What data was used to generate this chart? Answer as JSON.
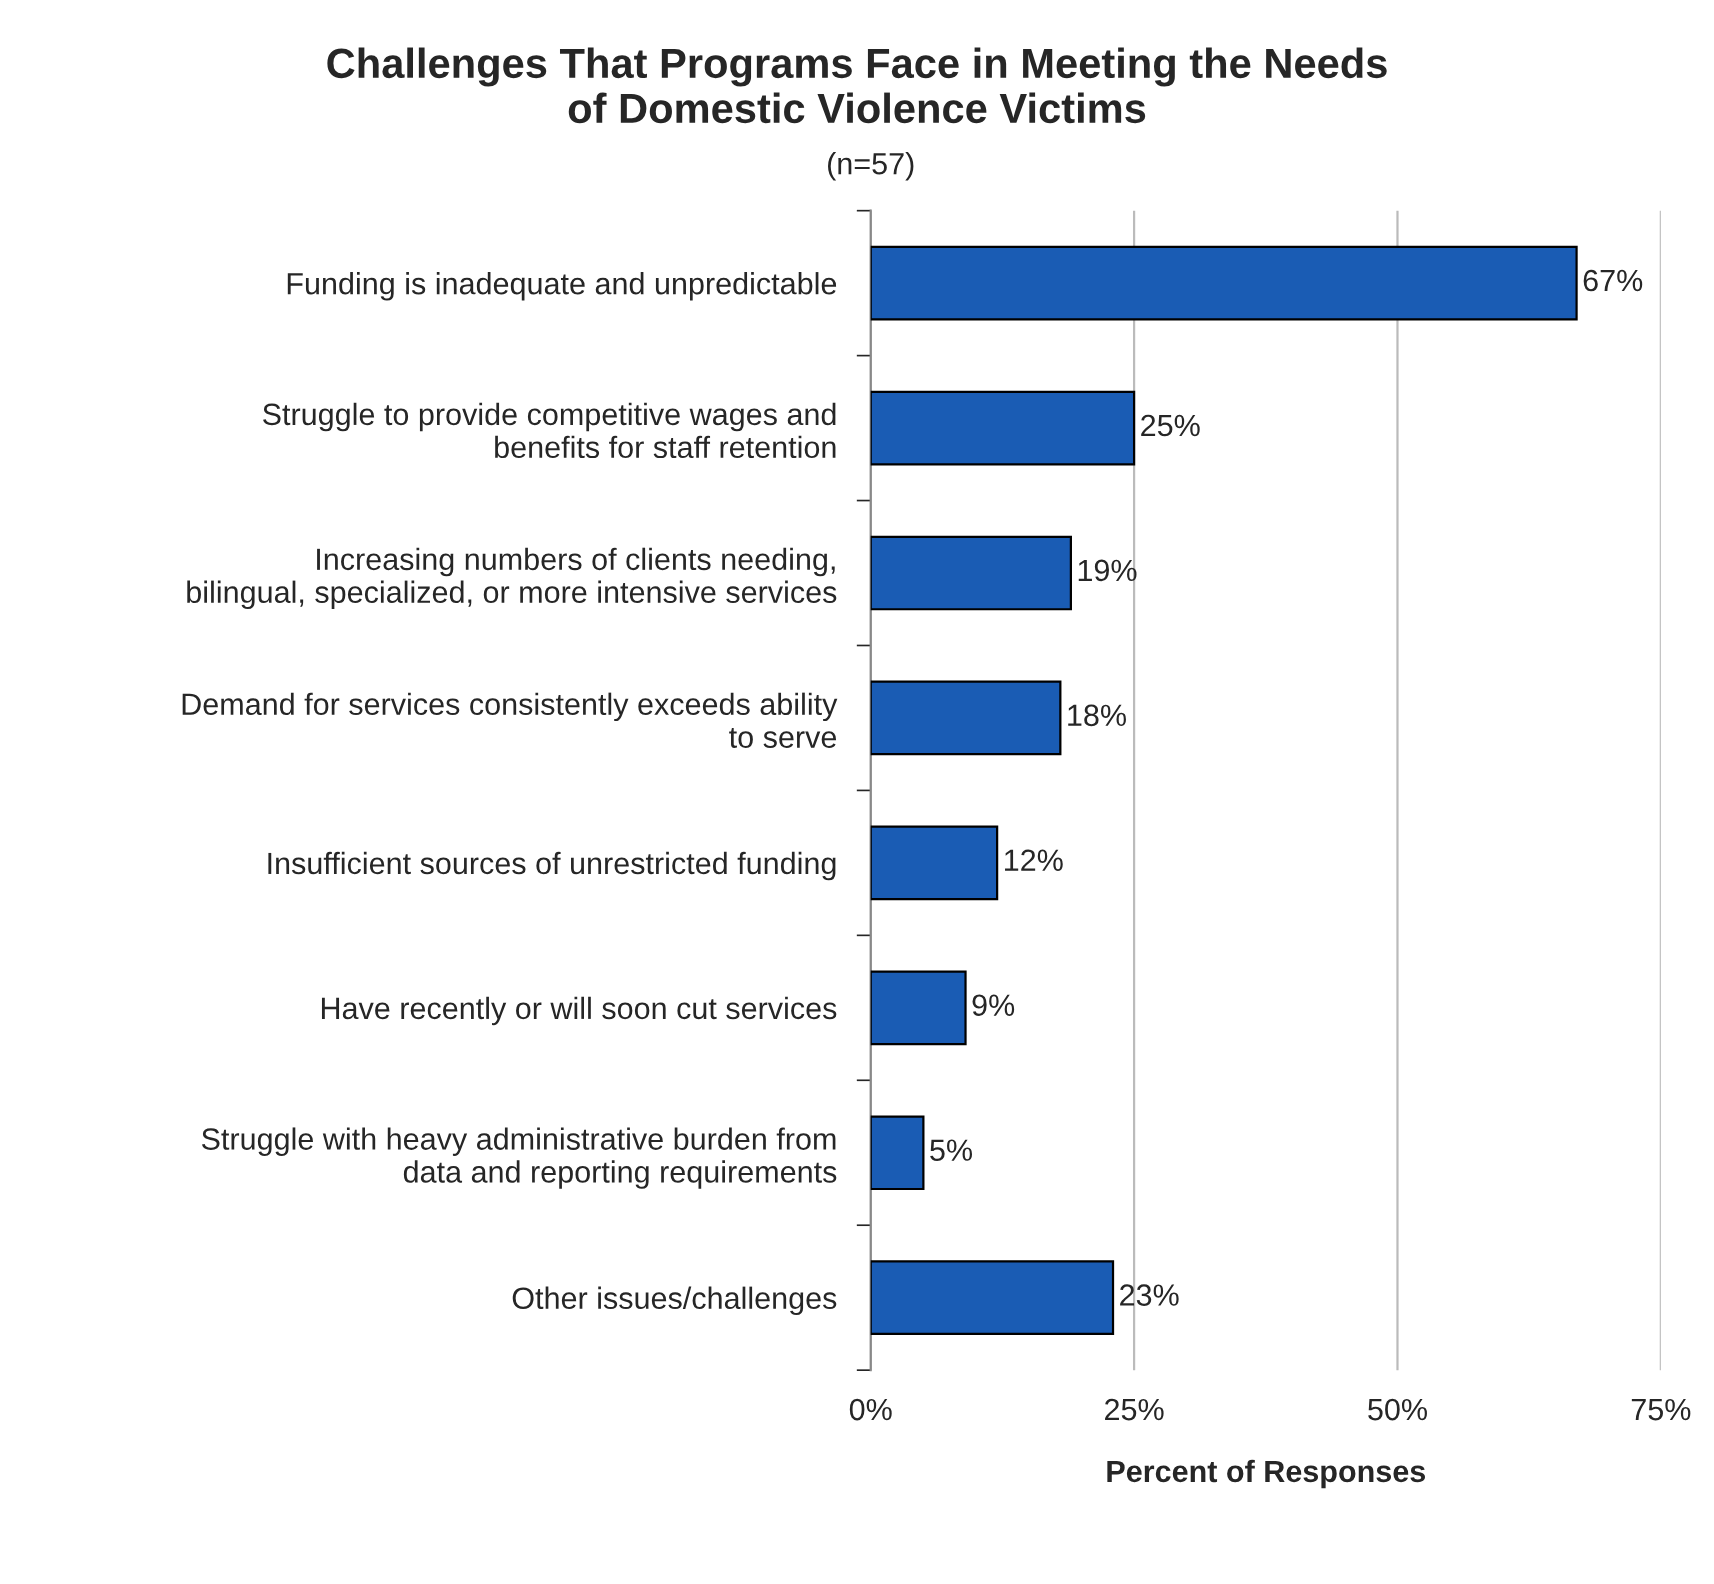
{
  "chart_data": {
    "type": "bar",
    "orientation": "horizontal",
    "title": "Challenges That Programs Face in Meeting the Needs\nof Domestic Violence Victims",
    "subtitle": "(n=57)",
    "xlabel": "Percent of Responses",
    "categories": [
      "Funding is inadequate and unpredictable",
      "Struggle to provide competitive wages and\nbenefits for staff retention",
      "Increasing numbers of clients needing,\nbilingual, specialized, or more intensive services",
      "Demand for services consistently exceeds ability\nto serve",
      "Insufficient sources of unrestricted funding",
      "Have recently or will soon cut services",
      "Struggle with heavy administrative burden from\ndata and reporting requirements",
      "Other issues/challenges"
    ],
    "values": [
      67,
      25,
      19,
      18,
      12,
      9,
      5,
      23
    ],
    "value_labels": [
      "67%",
      "25%",
      "19%",
      "18%",
      "12%",
      "9%",
      "5%",
      "23%"
    ],
    "color": "#1a5cb4",
    "xlim": [
      0,
      75
    ],
    "xticks": [
      {
        "value": 0,
        "label": "0%"
      },
      {
        "value": 25,
        "label": "25%"
      },
      {
        "value": 50,
        "label": "50%"
      },
      {
        "value": 75,
        "label": "75%"
      }
    ],
    "grid": "x"
  }
}
